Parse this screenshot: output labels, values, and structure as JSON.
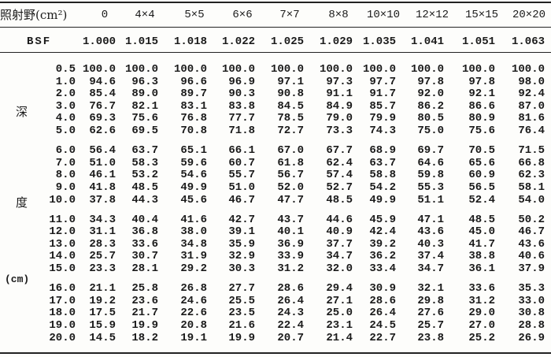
{
  "header": {
    "field_label": "照射野(cm²)",
    "columns": [
      "0",
      "4×4",
      "5×5",
      "6×6",
      "7×7",
      "8×8",
      "10×10",
      "12×12",
      "15×15",
      "20×20"
    ]
  },
  "bsf": {
    "label": "BSF",
    "values": [
      "1.000",
      "1.015",
      "1.018",
      "1.022",
      "1.025",
      "1.029",
      "1.035",
      "1.041",
      "1.051",
      "1.063"
    ]
  },
  "side_label": {
    "char1": "深",
    "char2": "度",
    "unit": "(cm)"
  },
  "rows": [
    {
      "depth": "0.5",
      "values": [
        "100.0",
        "100.0",
        "100.0",
        "100.0",
        "100.0",
        "100.0",
        "100.0",
        "100.0",
        "100.0",
        "100.0"
      ]
    },
    {
      "depth": "1.0",
      "values": [
        "94.6",
        "96.3",
        "96.6",
        "96.9",
        "97.1",
        "97.3",
        "97.7",
        "97.8",
        "97.8",
        "98.0"
      ]
    },
    {
      "depth": "2.0",
      "values": [
        "85.4",
        "89.0",
        "89.7",
        "90.3",
        "90.8",
        "91.1",
        "91.7",
        "92.0",
        "92.1",
        "92.4"
      ]
    },
    {
      "depth": "3.0",
      "values": [
        "76.7",
        "82.1",
        "83.1",
        "83.8",
        "84.5",
        "84.9",
        "85.7",
        "86.2",
        "86.6",
        "87.0"
      ]
    },
    {
      "depth": "4.0",
      "values": [
        "69.3",
        "75.6",
        "76.8",
        "77.7",
        "78.5",
        "79.0",
        "79.9",
        "80.5",
        "80.9",
        "81.6"
      ]
    },
    {
      "depth": "5.0",
      "values": [
        "62.6",
        "69.5",
        "70.8",
        "71.8",
        "72.7",
        "73.3",
        "74.3",
        "75.0",
        "75.6",
        "76.4"
      ]
    },
    {
      "depth": "6.0",
      "values": [
        "56.4",
        "63.7",
        "65.1",
        "66.1",
        "67.0",
        "67.7",
        "68.9",
        "69.7",
        "70.5",
        "71.5"
      ]
    },
    {
      "depth": "7.0",
      "values": [
        "51.0",
        "58.3",
        "59.6",
        "60.7",
        "61.8",
        "62.4",
        "63.7",
        "64.6",
        "65.6",
        "66.8"
      ]
    },
    {
      "depth": "8.0",
      "values": [
        "46.1",
        "53.2",
        "54.6",
        "55.7",
        "56.7",
        "57.4",
        "58.8",
        "59.8",
        "60.9",
        "62.3"
      ]
    },
    {
      "depth": "9.0",
      "values": [
        "41.8",
        "48.5",
        "49.9",
        "51.0",
        "52.0",
        "52.7",
        "54.2",
        "55.3",
        "56.5",
        "58.1"
      ]
    },
    {
      "depth": "10.0",
      "values": [
        "37.8",
        "44.3",
        "45.6",
        "46.7",
        "47.7",
        "48.5",
        "49.9",
        "51.1",
        "52.4",
        "54.0"
      ]
    },
    {
      "depth": "11.0",
      "values": [
        "34.3",
        "40.4",
        "41.6",
        "42.7",
        "43.7",
        "44.6",
        "45.9",
        "47.1",
        "48.5",
        "50.2"
      ]
    },
    {
      "depth": "12.0",
      "values": [
        "31.1",
        "36.8",
        "38.0",
        "39.1",
        "40.1",
        "40.9",
        "42.4",
        "43.6",
        "45.0",
        "46.7"
      ]
    },
    {
      "depth": "13.0",
      "values": [
        "28.3",
        "33.6",
        "34.8",
        "35.9",
        "36.9",
        "37.7",
        "39.2",
        "40.3",
        "41.7",
        "43.6"
      ]
    },
    {
      "depth": "14.0",
      "values": [
        "25.7",
        "30.7",
        "31.9",
        "32.9",
        "33.9",
        "34.7",
        "36.2",
        "37.4",
        "38.8",
        "40.6"
      ]
    },
    {
      "depth": "15.0",
      "values": [
        "23.3",
        "28.1",
        "29.2",
        "30.3",
        "31.2",
        "32.0",
        "33.4",
        "34.7",
        "36.1",
        "37.9"
      ]
    },
    {
      "depth": "16.0",
      "values": [
        "21.1",
        "25.8",
        "26.8",
        "27.7",
        "28.6",
        "29.4",
        "30.9",
        "32.1",
        "33.6",
        "35.3"
      ]
    },
    {
      "depth": "17.0",
      "values": [
        "19.2",
        "23.6",
        "24.6",
        "25.5",
        "26.4",
        "27.1",
        "28.6",
        "29.8",
        "31.2",
        "33.0"
      ]
    },
    {
      "depth": "18.0",
      "values": [
        "17.5",
        "21.7",
        "22.6",
        "23.5",
        "24.3",
        "25.0",
        "26.4",
        "27.6",
        "29.0",
        "30.8"
      ]
    },
    {
      "depth": "19.0",
      "values": [
        "15.9",
        "19.9",
        "20.8",
        "21.6",
        "22.4",
        "23.1",
        "24.5",
        "25.7",
        "27.0",
        "28.8"
      ]
    },
    {
      "depth": "20.0",
      "values": [
        "14.5",
        "18.2",
        "19.1",
        "19.9",
        "20.7",
        "21.4",
        "22.7",
        "23.8",
        "25.2",
        "26.9"
      ]
    }
  ]
}
